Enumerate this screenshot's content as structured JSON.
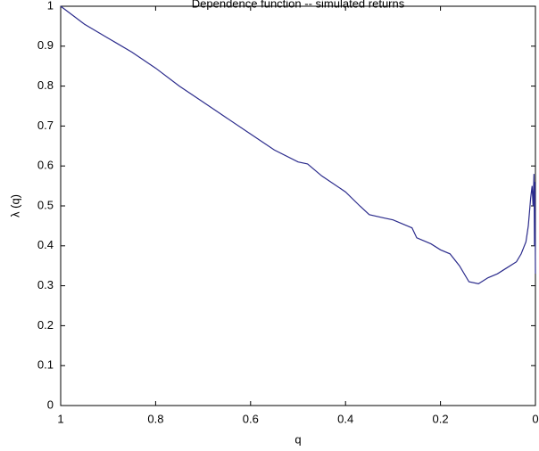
{
  "chart_data": {
    "type": "line",
    "title": "Dependence function -- simulated returns",
    "xlabel": "q",
    "ylabel": "λ (q)",
    "x": [
      1,
      0.95,
      0.9,
      0.85,
      0.8,
      0.75,
      0.7,
      0.65,
      0.6,
      0.55,
      0.5,
      0.48,
      0.45,
      0.4,
      0.37,
      0.35,
      0.32,
      0.3,
      0.28,
      0.26,
      0.25,
      0.22,
      0.2,
      0.18,
      0.16,
      0.14,
      0.12,
      0.1,
      0.08,
      0.06,
      0.04,
      0.03,
      0.02,
      0.015,
      0.01,
      0.007,
      0.005,
      0.003,
      0.002,
      0.001,
      0
    ],
    "series": [
      {
        "name": "λ (q)",
        "color": "#2b2b8c",
        "values": [
          1.0,
          0.955,
          0.92,
          0.885,
          0.845,
          0.8,
          0.76,
          0.72,
          0.68,
          0.64,
          0.61,
          0.605,
          0.575,
          0.535,
          0.5,
          0.478,
          0.47,
          0.465,
          0.455,
          0.445,
          0.42,
          0.405,
          0.39,
          0.38,
          0.35,
          0.31,
          0.305,
          0.32,
          0.33,
          0.345,
          0.36,
          0.38,
          0.41,
          0.45,
          0.52,
          0.55,
          0.5,
          0.58,
          0.4,
          0.56,
          0.33
        ]
      }
    ],
    "xlim": [
      1,
      0
    ],
    "xticks": [
      1,
      0.8,
      0.6,
      0.4,
      0.2,
      0
    ],
    "ylim": [
      0,
      1
    ],
    "yticks": [
      0,
      0.1,
      0.2,
      0.3,
      0.4,
      0.5,
      0.6,
      0.7,
      0.8,
      0.9,
      1
    ],
    "grid": false
  }
}
